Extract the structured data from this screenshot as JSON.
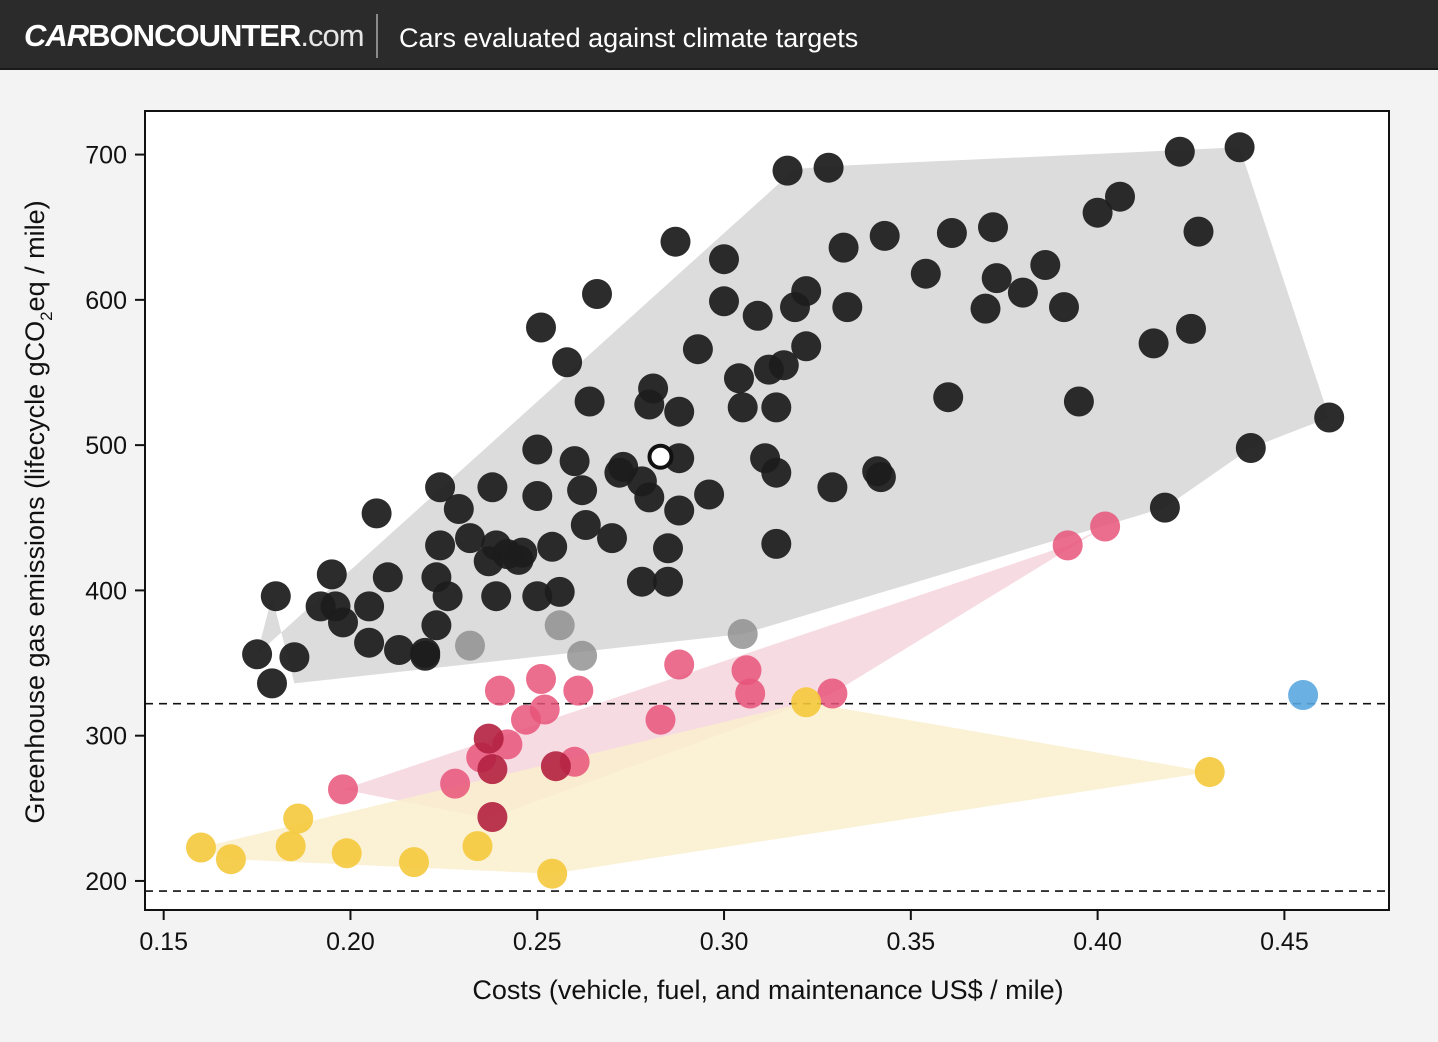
{
  "header": {
    "logo_part1": "CAR",
    "logo_part2": "BON",
    "logo_part3": "COUNTER",
    "logo_part4": ".com",
    "title": "Cars evaluated against climate targets"
  },
  "chart_data": {
    "type": "scatter",
    "title": "",
    "xlabel": "Costs (vehicle, fuel, and maintenance US$ / mile)",
    "ylabel_prefix": "Greenhouse gas emissions (lifecycle gCO",
    "ylabel_sub": "2",
    "ylabel_suffix": "eq / mile)",
    "xlim": [
      0.145,
      0.478
    ],
    "ylim": [
      180,
      730
    ],
    "xticks": [
      0.15,
      0.2,
      0.25,
      0.3,
      0.35,
      0.4,
      0.45
    ],
    "xtick_labels": [
      "0.15",
      "0.20",
      "0.25",
      "0.30",
      "0.35",
      "0.40",
      "0.45"
    ],
    "yticks": [
      200,
      300,
      400,
      500,
      600,
      700
    ],
    "ytick_labels": [
      "200",
      "300",
      "400",
      "500",
      "600",
      "700"
    ],
    "grid": false,
    "reference_lines": [
      322,
      193
    ],
    "highlight_point": {
      "x": 0.283,
      "y": 492
    },
    "colors": {
      "black": "#1c1c1c",
      "gray": "#8c8c8c",
      "pink": "#e8557a",
      "darkred": "#b2203f",
      "yellow": "#f5c93c",
      "blue": "#5aa7e0",
      "hull_gray": "#d6d6d6",
      "hull_pink": "#f6d5dd",
      "hull_yellow": "#faefcc"
    },
    "hulls": [
      {
        "color": "hull_gray",
        "points": [
          [
            0.175,
            356
          ],
          [
            0.319,
            690
          ],
          [
            0.328,
            692
          ],
          [
            0.438,
            705
          ],
          [
            0.462,
            519
          ],
          [
            0.441,
            498
          ],
          [
            0.418,
            457
          ],
          [
            0.305,
            370
          ],
          [
            0.185,
            336
          ],
          [
            0.179,
            396
          ]
        ]
      },
      {
        "color": "hull_pink",
        "points": [
          [
            0.198,
            263
          ],
          [
            0.392,
            431
          ],
          [
            0.402,
            444
          ],
          [
            0.329,
            329
          ],
          [
            0.237,
            243
          ]
        ]
      },
      {
        "color": "hull_yellow",
        "points": [
          [
            0.16,
            223
          ],
          [
            0.322,
            323
          ],
          [
            0.43,
            275
          ],
          [
            0.254,
            205
          ],
          [
            0.168,
            215
          ]
        ]
      }
    ],
    "series": [
      {
        "color": "black",
        "points": [
          [
            0.175,
            356
          ],
          [
            0.179,
            336
          ],
          [
            0.18,
            396
          ],
          [
            0.185,
            354
          ],
          [
            0.192,
            389
          ],
          [
            0.195,
            411
          ],
          [
            0.196,
            389
          ],
          [
            0.198,
            378
          ],
          [
            0.205,
            364
          ],
          [
            0.205,
            389
          ],
          [
            0.207,
            453
          ],
          [
            0.21,
            409
          ],
          [
            0.213,
            359
          ],
          [
            0.22,
            357
          ],
          [
            0.22,
            355
          ],
          [
            0.223,
            376
          ],
          [
            0.223,
            409
          ],
          [
            0.224,
            431
          ],
          [
            0.224,
            471
          ],
          [
            0.226,
            396
          ],
          [
            0.229,
            456
          ],
          [
            0.232,
            436
          ],
          [
            0.237,
            420
          ],
          [
            0.238,
            471
          ],
          [
            0.239,
            431
          ],
          [
            0.239,
            396
          ],
          [
            0.242,
            425
          ],
          [
            0.245,
            421
          ],
          [
            0.246,
            426
          ],
          [
            0.25,
            396
          ],
          [
            0.25,
            465
          ],
          [
            0.25,
            497
          ],
          [
            0.251,
            581
          ],
          [
            0.254,
            430
          ],
          [
            0.256,
            399
          ],
          [
            0.258,
            557
          ],
          [
            0.26,
            489
          ],
          [
            0.262,
            469
          ],
          [
            0.263,
            445
          ],
          [
            0.264,
            530
          ],
          [
            0.266,
            604
          ],
          [
            0.27,
            436
          ],
          [
            0.272,
            481
          ],
          [
            0.273,
            485
          ],
          [
            0.278,
            406
          ],
          [
            0.278,
            475
          ],
          [
            0.28,
            464
          ],
          [
            0.28,
            528
          ],
          [
            0.281,
            539
          ],
          [
            0.285,
            406
          ],
          [
            0.285,
            429
          ],
          [
            0.287,
            640
          ],
          [
            0.288,
            523
          ],
          [
            0.288,
            455
          ],
          [
            0.288,
            491
          ],
          [
            0.293,
            566
          ],
          [
            0.296,
            466
          ],
          [
            0.3,
            628
          ],
          [
            0.3,
            599
          ],
          [
            0.304,
            546
          ],
          [
            0.305,
            526
          ],
          [
            0.309,
            589
          ],
          [
            0.311,
            491
          ],
          [
            0.312,
            552
          ],
          [
            0.314,
            432
          ],
          [
            0.314,
            526
          ],
          [
            0.314,
            481
          ],
          [
            0.316,
            555
          ],
          [
            0.317,
            689
          ],
          [
            0.319,
            595
          ],
          [
            0.322,
            606
          ],
          [
            0.322,
            568
          ],
          [
            0.328,
            691
          ],
          [
            0.329,
            471
          ],
          [
            0.332,
            636
          ],
          [
            0.333,
            595
          ],
          [
            0.341,
            482
          ],
          [
            0.342,
            478
          ],
          [
            0.343,
            644
          ],
          [
            0.354,
            618
          ],
          [
            0.36,
            533
          ],
          [
            0.361,
            646
          ],
          [
            0.37,
            594
          ],
          [
            0.372,
            650
          ],
          [
            0.373,
            615
          ],
          [
            0.38,
            605
          ],
          [
            0.386,
            624
          ],
          [
            0.391,
            595
          ],
          [
            0.395,
            530
          ],
          [
            0.4,
            660
          ],
          [
            0.406,
            671
          ],
          [
            0.415,
            570
          ],
          [
            0.418,
            457
          ],
          [
            0.422,
            702
          ],
          [
            0.425,
            580
          ],
          [
            0.427,
            647
          ],
          [
            0.438,
            705
          ],
          [
            0.441,
            498
          ],
          [
            0.462,
            519
          ]
        ]
      },
      {
        "color": "gray",
        "points": [
          [
            0.232,
            362
          ],
          [
            0.256,
            376
          ],
          [
            0.262,
            355
          ],
          [
            0.305,
            370
          ]
        ]
      },
      {
        "color": "pink",
        "points": [
          [
            0.198,
            263
          ],
          [
            0.228,
            267
          ],
          [
            0.235,
            285
          ],
          [
            0.24,
            331
          ],
          [
            0.242,
            294
          ],
          [
            0.247,
            311
          ],
          [
            0.251,
            339
          ],
          [
            0.252,
            318
          ],
          [
            0.261,
            331
          ],
          [
            0.26,
            282
          ],
          [
            0.283,
            311
          ],
          [
            0.288,
            349
          ],
          [
            0.306,
            345
          ],
          [
            0.307,
            329
          ],
          [
            0.329,
            329
          ],
          [
            0.392,
            431
          ],
          [
            0.402,
            444
          ]
        ]
      },
      {
        "color": "darkred",
        "points": [
          [
            0.237,
            298
          ],
          [
            0.238,
            277
          ],
          [
            0.238,
            244
          ],
          [
            0.255,
            279
          ]
        ]
      },
      {
        "color": "yellow",
        "points": [
          [
            0.16,
            223
          ],
          [
            0.168,
            215
          ],
          [
            0.184,
            224
          ],
          [
            0.186,
            243
          ],
          [
            0.199,
            219
          ],
          [
            0.217,
            213
          ],
          [
            0.234,
            224
          ],
          [
            0.254,
            205
          ],
          [
            0.322,
            323
          ],
          [
            0.43,
            275
          ]
        ]
      },
      {
        "color": "blue",
        "points": [
          [
            0.455,
            328
          ]
        ]
      }
    ]
  }
}
